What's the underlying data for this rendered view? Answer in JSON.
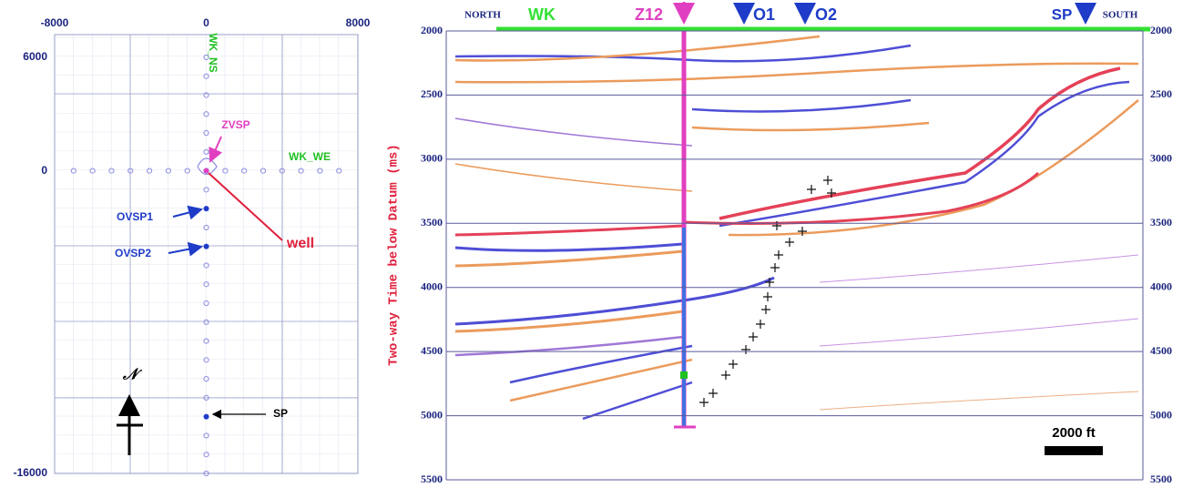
{
  "chart_data": [
    {
      "type": "scatter",
      "xlim": [
        -8000,
        8000
      ],
      "ylim": [
        -16000,
        7200
      ],
      "xticks": [
        -8000,
        0,
        8000
      ],
      "yticks": [
        -16000,
        0,
        6000
      ],
      "series": [
        {
          "name": "WK_NS",
          "color": "#8c8ce0",
          "x": [
            0,
            0,
            0,
            0,
            0,
            0,
            0,
            0,
            0,
            0,
            0,
            0,
            0,
            0,
            0,
            0,
            0,
            0,
            0,
            0,
            0,
            0,
            0
          ],
          "y": [
            6000,
            5000,
            4000,
            3000,
            2000,
            1000,
            0,
            -1000,
            -2000,
            -3000,
            -4000,
            -5000,
            -6000,
            -7000,
            -8000,
            -9000,
            -10000,
            -11000,
            -12000,
            -13000,
            -14000,
            -15000,
            -16000
          ]
        },
        {
          "name": "WK_WE",
          "color": "#8c8ce0",
          "x": [
            -7000,
            -6000,
            -5000,
            -4000,
            -3000,
            -2000,
            -1000,
            0,
            1000,
            2000,
            3000,
            4000,
            5000,
            6000,
            7000
          ],
          "y": [
            0,
            0,
            0,
            0,
            0,
            0,
            0,
            0,
            0,
            0,
            0,
            0,
            0,
            0,
            0
          ]
        },
        {
          "name": "ZVSP",
          "color": "#e040c0",
          "x": [
            0
          ],
          "y": [
            0
          ]
        },
        {
          "name": "OVSP1",
          "color": "#1e3cc8",
          "x": [
            0
          ],
          "y": [
            -2000
          ]
        },
        {
          "name": "OVSP2",
          "color": "#1e3cc8",
          "x": [
            0
          ],
          "y": [
            -4000
          ]
        },
        {
          "name": "SP",
          "color": "#1e3cc8",
          "x": [
            0
          ],
          "y": [
            -13000
          ]
        }
      ],
      "annotations": [
        "well",
        "𝒩"
      ]
    },
    {
      "type": "seismic",
      "ylabel": "Two-way Time below Datum (ms)",
      "ylim": [
        2000,
        5500
      ],
      "yticks": [
        2000,
        2500,
        3000,
        3500,
        4000,
        4500,
        5000,
        5500
      ],
      "top_labels": [
        "NORTH",
        "WK",
        "Z12",
        "O1",
        "O2",
        "SP",
        "SOUTH"
      ],
      "scale_bar": "2000 ft"
    }
  ]
}
